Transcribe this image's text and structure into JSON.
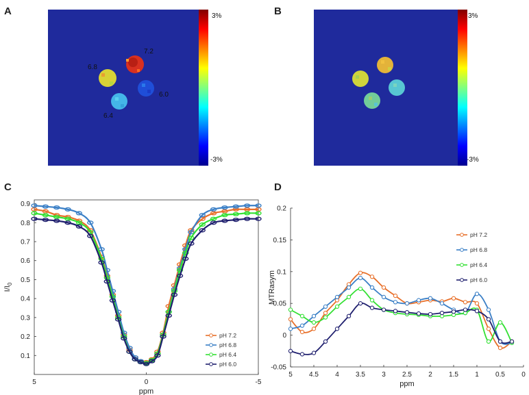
{
  "figure": {
    "colors": {
      "map_bg": "#1f2a9c",
      "plot_bg": "#ffffff"
    }
  },
  "panels": {
    "A": {
      "label": "A",
      "colorbar": {
        "max_label": "3%",
        "min_label": "-3%"
      },
      "phantoms": [
        {
          "label": "7.2",
          "color": "#d83020"
        },
        {
          "label": "6.8",
          "color": "#d8d236"
        },
        {
          "label": "6.4",
          "color": "#44b6e8"
        },
        {
          "label": "6.0",
          "color": "#1f4ed8"
        }
      ]
    },
    "B": {
      "label": "B",
      "colorbar": {
        "max_label": "3%",
        "min_label": "-3%"
      },
      "phantoms": [
        {
          "name": "top-right",
          "color": "#e3b33a"
        },
        {
          "name": "left",
          "color": "#cfd43c"
        },
        {
          "name": "bottom",
          "color": "#72cc9a"
        },
        {
          "name": "right",
          "color": "#58c6d2"
        }
      ]
    }
  },
  "chart_data": [
    {
      "panel_label": "C",
      "type": "line",
      "title": "",
      "xlabel": "ppm",
      "ylabel": "I/I0",
      "ylabel_main": "I/I",
      "ylabel_sub": "0",
      "xlim": [
        5,
        -5
      ],
      "ylim": [
        0.0,
        0.92
      ],
      "xticks": [
        5,
        0,
        -5
      ],
      "xtick_labels": [
        "5",
        "0",
        "-5"
      ],
      "yticks": [
        0.1,
        0.2,
        0.3,
        0.4,
        0.5,
        0.6,
        0.7,
        0.8,
        0.9
      ],
      "ytick_labels": [
        "0.1",
        "0.2",
        "0.3",
        "0.4",
        "0.5",
        "0.6",
        "0.7",
        "0.8",
        "0.9"
      ],
      "legend_position": "bottom-right",
      "x": [
        5,
        4.5,
        4,
        3.5,
        3,
        2.5,
        2,
        1.75,
        1.5,
        1.25,
        1,
        0.75,
        0.5,
        0.25,
        0,
        -0.25,
        -0.5,
        -0.75,
        -1,
        -1.25,
        -1.5,
        -1.75,
        -2,
        -2.5,
        -3,
        -3.5,
        -4,
        -4.5,
        -5
      ],
      "series": [
        {
          "name": "pH 7.2",
          "label": "pH 7.2",
          "color": "#e8702a",
          "marker": "circle",
          "values": [
            0.87,
            0.86,
            0.84,
            0.83,
            0.81,
            0.76,
            0.62,
            0.52,
            0.42,
            0.31,
            0.21,
            0.13,
            0.09,
            0.07,
            0.065,
            0.08,
            0.12,
            0.22,
            0.36,
            0.47,
            0.58,
            0.68,
            0.76,
            0.82,
            0.85,
            0.86,
            0.87,
            0.87,
            0.87
          ]
        },
        {
          "name": "pH 6.8",
          "label": "pH 6.8",
          "color": "#3a7fc6",
          "marker": "circle",
          "values": [
            0.89,
            0.885,
            0.88,
            0.87,
            0.85,
            0.8,
            0.66,
            0.55,
            0.44,
            0.33,
            0.22,
            0.14,
            0.09,
            0.07,
            0.06,
            0.075,
            0.11,
            0.21,
            0.33,
            0.45,
            0.56,
            0.66,
            0.75,
            0.84,
            0.87,
            0.88,
            0.885,
            0.89,
            0.89
          ]
        },
        {
          "name": "pH 6.4",
          "label": "pH 6.4",
          "color": "#33e033",
          "marker": "circle",
          "values": [
            0.85,
            0.84,
            0.83,
            0.82,
            0.8,
            0.75,
            0.61,
            0.51,
            0.41,
            0.3,
            0.2,
            0.12,
            0.08,
            0.065,
            0.06,
            0.075,
            0.11,
            0.21,
            0.33,
            0.44,
            0.55,
            0.64,
            0.72,
            0.79,
            0.82,
            0.84,
            0.845,
            0.85,
            0.85
          ]
        },
        {
          "name": "pH 6.0",
          "label": "pH 6.0",
          "color": "#1f1f6e",
          "marker": "circle",
          "values": [
            0.82,
            0.815,
            0.81,
            0.8,
            0.78,
            0.73,
            0.59,
            0.49,
            0.39,
            0.29,
            0.19,
            0.12,
            0.08,
            0.065,
            0.055,
            0.07,
            0.1,
            0.2,
            0.31,
            0.42,
            0.52,
            0.61,
            0.69,
            0.76,
            0.8,
            0.81,
            0.815,
            0.82,
            0.82
          ]
        }
      ]
    },
    {
      "panel_label": "D",
      "type": "line",
      "title": "",
      "xlabel": "ppm",
      "ylabel": "MTRasym",
      "xlim": [
        5,
        0
      ],
      "ylim": [
        -0.05,
        0.2
      ],
      "xticks": [
        5,
        4.5,
        4,
        3.5,
        3,
        2.5,
        2,
        1.5,
        1,
        0.5,
        0
      ],
      "xtick_labels": [
        "5",
        "4.5",
        "4",
        "3.5",
        "3",
        "2.5",
        "2",
        "1.5",
        "1",
        "0.5",
        "0"
      ],
      "yticks": [
        -0.05,
        0,
        0.05,
        0.1,
        0.15,
        0.2
      ],
      "ytick_labels": [
        "-0.05",
        "0",
        "0.05",
        "0.1",
        "0.15",
        "0.2"
      ],
      "legend_position": "top-right",
      "x": [
        5,
        4.75,
        4.5,
        4.25,
        4,
        3.75,
        3.5,
        3.25,
        3,
        2.75,
        2.5,
        2.25,
        2,
        1.75,
        1.5,
        1.25,
        1,
        0.75,
        0.5,
        0.25
      ],
      "series": [
        {
          "name": "pH 7.2",
          "label": "pH 7.2",
          "color": "#e8702a",
          "marker": "circle",
          "values": [
            0.025,
            0.005,
            0.01,
            0.035,
            0.055,
            0.08,
            0.098,
            0.092,
            0.075,
            0.062,
            0.05,
            0.052,
            0.055,
            0.053,
            0.058,
            0.052,
            0.05,
            0.01,
            -0.02,
            -0.01
          ]
        },
        {
          "name": "pH 6.8",
          "label": "pH 6.8",
          "color": "#3a7fc6",
          "marker": "circle",
          "values": [
            0.01,
            0.015,
            0.03,
            0.045,
            0.06,
            0.075,
            0.09,
            0.075,
            0.06,
            0.052,
            0.05,
            0.055,
            0.058,
            0.05,
            0.04,
            0.035,
            0.065,
            0.04,
            -0.01,
            -0.012
          ]
        },
        {
          "name": "pH 6.4",
          "label": "pH 6.4",
          "color": "#33e033",
          "marker": "circle",
          "values": [
            0.04,
            0.03,
            0.02,
            0.028,
            0.045,
            0.06,
            0.073,
            0.055,
            0.04,
            0.035,
            0.033,
            0.032,
            0.03,
            0.03,
            0.032,
            0.035,
            0.04,
            -0.01,
            0.02,
            -0.012
          ]
        },
        {
          "name": "pH 6.0",
          "label": "pH 6.0",
          "color": "#1f1f6e",
          "marker": "circle",
          "values": [
            -0.025,
            -0.03,
            -0.028,
            -0.01,
            0.01,
            0.03,
            0.05,
            0.043,
            0.04,
            0.038,
            0.036,
            0.034,
            0.033,
            0.035,
            0.037,
            0.04,
            0.038,
            0.025,
            -0.01,
            -0.01
          ]
        }
      ]
    }
  ]
}
